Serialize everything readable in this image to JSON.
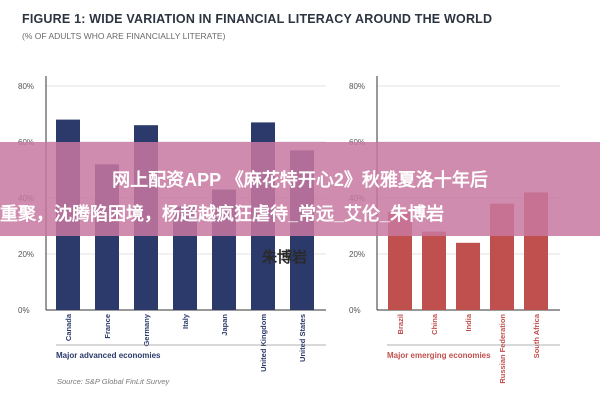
{
  "figure": {
    "title": "FIGURE 1: WIDE VARIATION IN FINANCIAL LITERACY AROUND THE WORLD",
    "subtitle": "(% OF ADULTS WHO ARE FINANCIALLY LITERATE)",
    "source": "Source: S&P Global FinLit Survey"
  },
  "overlay": {
    "line1": "网上配资APP 《麻花特开心2》秋雅夏洛十年后",
    "line2": "重聚，沈腾陷困境，杨超越疯狂虐待_常远_艾伦_朱博岩",
    "line3": "朱博岩"
  },
  "colors": {
    "advanced": "#2b3a6b",
    "emerging": "#c0504d",
    "axis": "#333333",
    "grid": "#e3e3e3"
  },
  "chart_data": [
    {
      "type": "bar",
      "group_label": "Major advanced economies",
      "categories": [
        "Canada",
        "France",
        "Germany",
        "Italy",
        "Japan",
        "United Kingdom",
        "United States"
      ],
      "values": [
        68,
        52,
        66,
        37,
        43,
        67,
        57
      ],
      "ylim": [
        0,
        80
      ],
      "yticks": [
        "0%",
        "20%",
        "40%",
        "60%",
        "80%"
      ],
      "grid": true
    },
    {
      "type": "bar",
      "group_label": "Major emerging economies",
      "categories": [
        "Brazil",
        "China",
        "India",
        "Russian Federation",
        "South Africa"
      ],
      "values": [
        35,
        28,
        24,
        38,
        42
      ],
      "ylim": [
        0,
        80
      ],
      "yticks": [
        "0%",
        "20%",
        "40%",
        "60%",
        "80%"
      ],
      "grid": true
    }
  ]
}
